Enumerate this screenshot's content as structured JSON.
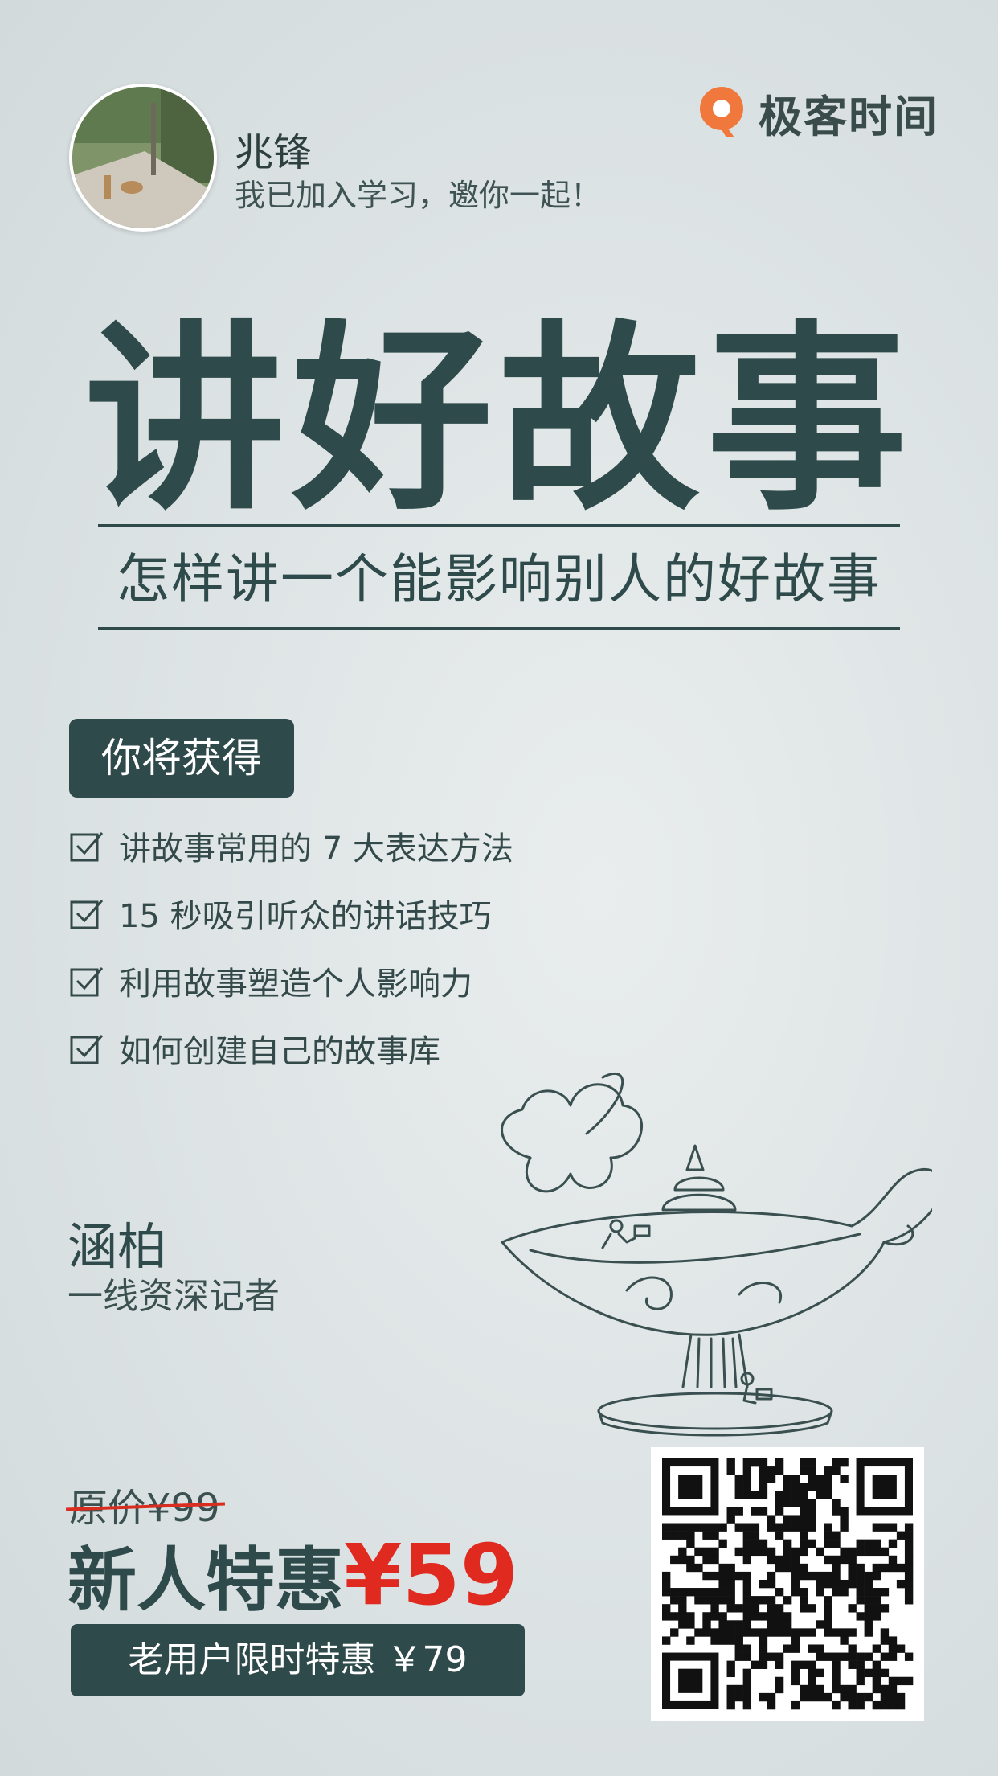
{
  "header": {
    "user_name": "兆锋",
    "invite_message": "我已加入学习，邀你一起！",
    "brand_name": "极客时间",
    "brand_color": "#f0783c"
  },
  "course": {
    "title": "讲好故事",
    "subtitle": "怎样讲一个能影响别人的好故事"
  },
  "gains": {
    "badge_label": "你将获得",
    "items": [
      "讲故事常用的 7 大表达方法",
      "15 秒吸引听众的讲话技巧",
      "利用故事塑造个人影响力",
      "如何创建自己的故事库"
    ]
  },
  "author": {
    "name": "涵柏",
    "title": "一线资深记者"
  },
  "pricing": {
    "original_price": "原价¥99",
    "new_user_label": "新人特惠",
    "new_user_price": "¥59",
    "old_user_offer": "老用户限时特惠 ￥79",
    "price_color": "#e02a1f"
  },
  "icons": {
    "check": "checkbox-check-icon",
    "logo": "geek-time-logo-icon",
    "qr": "qr-code-icon",
    "lamp": "magic-lamp-illustration"
  }
}
